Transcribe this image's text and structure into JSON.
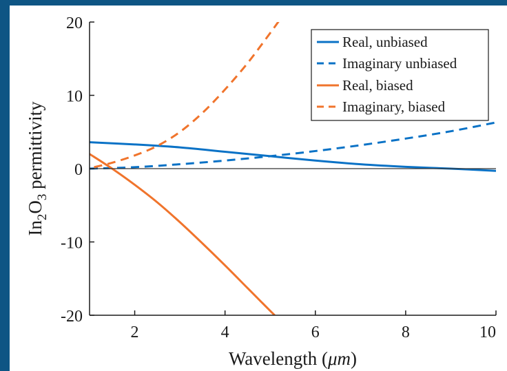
{
  "colors": {
    "background": "#0e5584",
    "unbiased": "#0a72c6",
    "biased": "#f0742c",
    "axis": "#1a1a1a",
    "zero_line": "#333333"
  },
  "chart_data": {
    "type": "line",
    "xlabel": "Wavelength (",
    "xlabel_unit": "μm",
    "xlabel_close": ")",
    "ylabel": {
      "prefix": "In",
      "sub1": "2",
      "middle": "O",
      "sub2": "3",
      "suffix": " permittivity"
    },
    "xlim": [
      1,
      10
    ],
    "ylim": [
      -20,
      20
    ],
    "xticks": [
      2,
      4,
      6,
      8,
      10
    ],
    "yticks": [
      20,
      10,
      0,
      -10,
      -20
    ],
    "zero_line": true,
    "grid": false,
    "legend_position": "top-right",
    "series": [
      {
        "name": "Real, unbiased",
        "style": "solid",
        "color": "#0a72c6",
        "x": [
          1,
          2,
          3,
          4,
          5,
          6,
          7,
          8,
          9,
          10
        ],
        "y": [
          3.6,
          3.3,
          2.9,
          2.3,
          1.7,
          1.1,
          0.6,
          0.25,
          0.0,
          -0.3
        ]
      },
      {
        "name": "Imaginary unbiased",
        "style": "dashed",
        "color": "#0a72c6",
        "x": [
          1,
          2,
          3,
          4,
          5,
          6,
          7,
          8,
          9,
          10
        ],
        "y": [
          0.0,
          0.2,
          0.6,
          1.1,
          1.7,
          2.4,
          3.2,
          4.1,
          5.1,
          6.3
        ]
      },
      {
        "name": "Real, biased",
        "style": "solid",
        "color": "#f0742c",
        "x": [
          1,
          1.5,
          2,
          2.5,
          3,
          3.5,
          4,
          4.5,
          5,
          5.1
        ],
        "y": [
          2.0,
          0.0,
          -2.2,
          -4.6,
          -7.3,
          -10.2,
          -13.2,
          -16.3,
          -19.4,
          -20.0
        ]
      },
      {
        "name": "Imaginary, biased",
        "style": "dashed",
        "color": "#f0742c",
        "x": [
          1.1,
          1.5,
          2,
          2.5,
          3,
          3.5,
          4,
          4.5,
          5,
          5.2
        ],
        "y": [
          0.2,
          0.8,
          1.8,
          3.1,
          5.0,
          7.6,
          10.8,
          14.4,
          18.5,
          20.2
        ]
      }
    ]
  }
}
